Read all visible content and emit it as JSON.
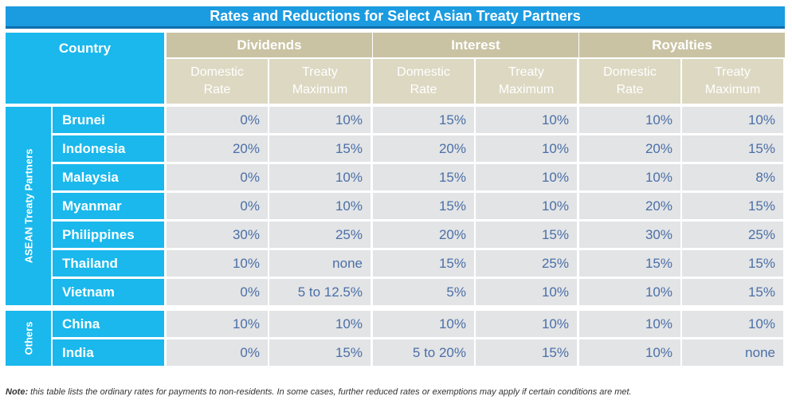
{
  "title": "Rates and Reductions for Select Asian Treaty Partners",
  "chart_data": {
    "type": "table",
    "title": "Rates and Reductions for Select Asian Treaty Partners",
    "header": {
      "country": "Country",
      "groups": [
        "Dividends",
        "Interest",
        "Royalties"
      ],
      "subheaders": [
        "Domestic\nRate",
        "Treaty\nMaximum",
        "Domestic\nRate",
        "Treaty\nMaximum",
        "Domestic\nRate",
        "Treaty\nMaximum"
      ]
    },
    "row_groups": [
      {
        "label": "ASEAN Treaty Partners",
        "rows": [
          {
            "country": "Brunei",
            "values": [
              "0%",
              "10%",
              "15%",
              "10%",
              "10%",
              "10%"
            ]
          },
          {
            "country": "Indonesia",
            "values": [
              "20%",
              "15%",
              "20%",
              "10%",
              "20%",
              "15%"
            ]
          },
          {
            "country": "Malaysia",
            "values": [
              "0%",
              "10%",
              "15%",
              "10%",
              "10%",
              "8%"
            ]
          },
          {
            "country": "Myanmar",
            "values": [
              "0%",
              "10%",
              "15%",
              "10%",
              "20%",
              "15%"
            ]
          },
          {
            "country": "Philippines",
            "values": [
              "30%",
              "25%",
              "20%",
              "15%",
              "30%",
              "25%"
            ]
          },
          {
            "country": "Thailand",
            "values": [
              "10%",
              "none",
              "15%",
              "25%",
              "15%",
              "15%"
            ]
          },
          {
            "country": "Vietnam",
            "values": [
              "0%",
              "5 to 12.5%",
              "5%",
              "10%",
              "10%",
              "15%"
            ]
          }
        ]
      },
      {
        "label": "Others",
        "rows": [
          {
            "country": "China",
            "values": [
              "10%",
              "10%",
              "10%",
              "10%",
              "10%",
              "10%"
            ]
          },
          {
            "country": "India",
            "values": [
              "0%",
              "15%",
              "5 to 20%",
              "15%",
              "10%",
              "none"
            ]
          }
        ]
      }
    ]
  },
  "note": {
    "label": "Note:",
    "text": " this table lists the ordinary rates for payments to non-residents.  In some cases, further reduced rates or exemptions may apply if certain conditions are met."
  },
  "colors": {
    "title_bg": "#1b9be0",
    "country_bg": "#1ab8ec",
    "group_header_bg": "#c9c3a3",
    "sub_header_bg": "#dcd8c2",
    "cell_bg": "#e3e4e5",
    "value_text": "#4a6fa8"
  }
}
